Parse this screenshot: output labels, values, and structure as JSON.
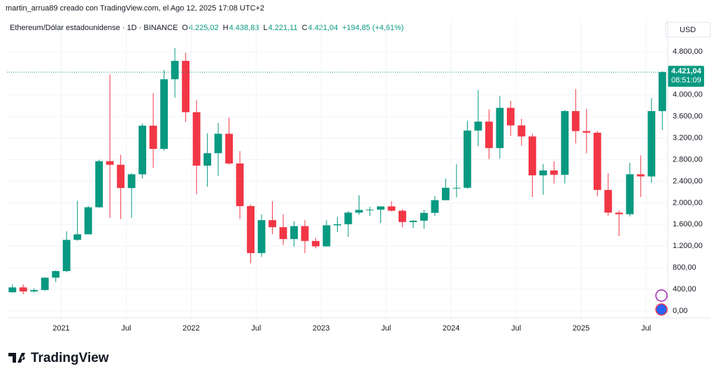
{
  "page": {
    "credit": "martin_arrua89 creado con TradingView.com, el Ago 12, 2025 17:08 UTC+2",
    "logo": "TradingView",
    "currency": "USD"
  },
  "chart_data": {
    "type": "candlestick",
    "header": {
      "symbol": "Ethereum/Dólar estadounidense · 1D · BINANCE",
      "o_label": "O",
      "o": "4.225,02",
      "h_label": "H",
      "h": "4.438,83",
      "l_label": "L",
      "l": "4.221,11",
      "c_label": "C",
      "c": "4.421,04",
      "change": "+194,85 (+4,61%)"
    },
    "last_price": {
      "value": 4421.04,
      "label": "4.421,04"
    },
    "countdown": "08:51:09",
    "up_color": "#089981",
    "down_color": "#f23645",
    "grid": true,
    "x": [
      "2020-08",
      "2020-09",
      "2020-10",
      "2020-11",
      "2020-12",
      "2021-01",
      "2021-02",
      "2021-03",
      "2021-04",
      "2021-05",
      "2021-06",
      "2021-07",
      "2021-08",
      "2021-09",
      "2021-10",
      "2021-11",
      "2021-12",
      "2022-01",
      "2022-02",
      "2022-03",
      "2022-04",
      "2022-05",
      "2022-06",
      "2022-07",
      "2022-08",
      "2022-09",
      "2022-10",
      "2022-11",
      "2022-12",
      "2023-01",
      "2023-02",
      "2023-03",
      "2023-04",
      "2023-05",
      "2023-06",
      "2023-07",
      "2023-08",
      "2023-09",
      "2023-10",
      "2023-11",
      "2023-12",
      "2024-01",
      "2024-02",
      "2024-03",
      "2024-04",
      "2024-05",
      "2024-06",
      "2024-07",
      "2024-08",
      "2024-09",
      "2024-10",
      "2024-11",
      "2024-12",
      "2025-01",
      "2025-02",
      "2025-03",
      "2025-04",
      "2025-05",
      "2025-06",
      "2025-07",
      "2025-08"
    ],
    "open": [
      345,
      435,
      360,
      386,
      615,
      737,
      1315,
      1418,
      1919,
      2773,
      2706,
      2275,
      2530,
      3430,
      3000,
      4290,
      4630,
      3680,
      2690,
      2920,
      3280,
      2730,
      1940,
      1070,
      1680,
      1550,
      1330,
      1570,
      1295,
      1195,
      1585,
      1605,
      1820,
      1870,
      1875,
      1935,
      1855,
      1645,
      1670,
      1815,
      2050,
      2280,
      2280,
      3340,
      3505,
      3015,
      3760,
      3435,
      3230,
      2510,
      2600,
      2520,
      3700,
      3330,
      3300,
      2240,
      1820,
      1790,
      2530,
      2490,
      3700
    ],
    "high": [
      490,
      488,
      420,
      620,
      750,
      1475,
      2040,
      1945,
      2800,
      4380,
      2890,
      2550,
      3470,
      4030,
      4460,
      4870,
      4780,
      3900,
      3290,
      3480,
      3580,
      2960,
      1970,
      1790,
      2030,
      1790,
      1660,
      1680,
      1350,
      1680,
      1740,
      1850,
      2140,
      1930,
      1930,
      2030,
      1880,
      1680,
      1870,
      2130,
      2450,
      2720,
      3520,
      4090,
      3730,
      3980,
      3890,
      3560,
      3280,
      2720,
      2770,
      3720,
      4110,
      3740,
      3330,
      2550,
      1860,
      2740,
      2880,
      3940,
      4439
    ],
    "low": [
      335,
      308,
      335,
      373,
      530,
      715,
      1300,
      1450,
      1910,
      1720,
      1700,
      1720,
      2450,
      2650,
      2970,
      3950,
      3500,
      2160,
      2300,
      2500,
      2710,
      1700,
      880,
      1000,
      1420,
      1220,
      1190,
      1070,
      1160,
      1190,
      1460,
      1370,
      1780,
      1760,
      1630,
      1840,
      1550,
      1530,
      1520,
      1760,
      2050,
      2100,
      2260,
      3050,
      2810,
      2820,
      3240,
      3060,
      2110,
      2150,
      2360,
      2360,
      3100,
      2920,
      2120,
      1760,
      1385,
      1750,
      2110,
      2370,
      3350
    ],
    "close": [
      435,
      360,
      386,
      615,
      737,
      1315,
      1418,
      1919,
      2773,
      2706,
      2275,
      2530,
      3430,
      3000,
      4290,
      4630,
      3680,
      2690,
      2920,
      3280,
      2730,
      1940,
      1070,
      1680,
      1550,
      1330,
      1570,
      1295,
      1195,
      1585,
      1605,
      1820,
      1870,
      1875,
      1935,
      1855,
      1645,
      1670,
      1815,
      2050,
      2280,
      2280,
      3340,
      3505,
      3015,
      3760,
      3435,
      3230,
      2510,
      2600,
      2520,
      3700,
      3330,
      3300,
      2240,
      1820,
      1790,
      2530,
      2490,
      3700,
      4421.04
    ],
    "xlim": [
      "2020-08",
      "2025-09"
    ],
    "xticks": [
      {
        "value": "2021-01",
        "label": "2021"
      },
      {
        "value": "2021-07",
        "label": "Jul"
      },
      {
        "value": "2022-01",
        "label": "2022"
      },
      {
        "value": "2022-07",
        "label": "Jul"
      },
      {
        "value": "2023-01",
        "label": "2023"
      },
      {
        "value": "2023-07",
        "label": "Jul"
      },
      {
        "value": "2024-01",
        "label": "2024"
      },
      {
        "value": "2024-07",
        "label": "Jul"
      },
      {
        "value": "2025-01",
        "label": "2025"
      },
      {
        "value": "2025-07",
        "label": "Jul"
      }
    ],
    "ylim": [
      -130,
      5395
    ],
    "yticks": [
      {
        "value": 0,
        "label": "0,00"
      },
      {
        "value": 400,
        "label": "400,00"
      },
      {
        "value": 800,
        "label": "800,00"
      },
      {
        "value": 1200,
        "label": "1.200,00"
      },
      {
        "value": 1600,
        "label": "1.600,00"
      },
      {
        "value": 2000,
        "label": "2.000,00"
      },
      {
        "value": 2400,
        "label": "2.400,00"
      },
      {
        "value": 2800,
        "label": "2.800,00"
      },
      {
        "value": 3200,
        "label": "3.200,00"
      },
      {
        "value": 3600,
        "label": "3.600,00"
      },
      {
        "value": 4000,
        "label": "4.000,00"
      },
      {
        "value": 4800,
        "label": "4.800,00"
      }
    ]
  }
}
